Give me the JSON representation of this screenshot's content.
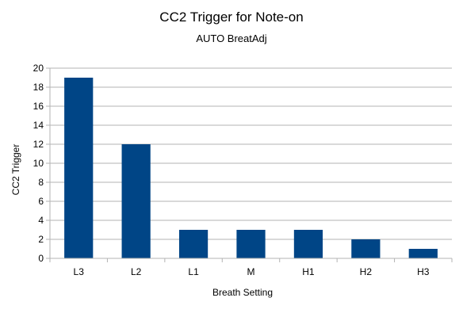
{
  "chart_data": {
    "type": "bar",
    "title": "CC2 Trigger for Note-on",
    "subtitle": "AUTO BreatAdj",
    "xlabel": "Breath Setting",
    "ylabel": "CC2 Trigger",
    "categories": [
      "L3",
      "L2",
      "L1",
      "M",
      "H1",
      "H2",
      "H3"
    ],
    "values": [
      19,
      12,
      3,
      3,
      3,
      2,
      1
    ],
    "ylim": [
      0,
      20
    ],
    "yticks": [
      "0",
      "2",
      "4",
      "6",
      "8",
      "10",
      "12",
      "14",
      "16",
      "18",
      "20"
    ],
    "grid": true,
    "legend": "none",
    "bar_color": "#004586",
    "grid_color": "#b3b3b3"
  }
}
